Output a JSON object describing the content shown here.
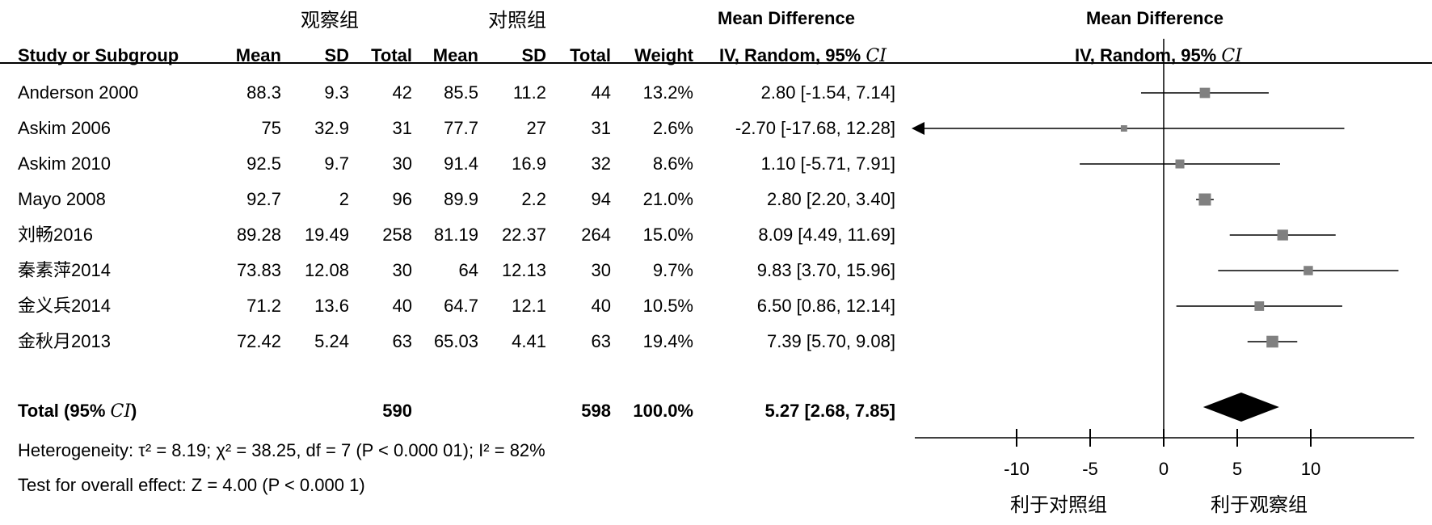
{
  "header": {
    "group1_label": "观察组",
    "group2_label": "对照组",
    "col_study": "Study or Subgroup",
    "col_mean1": "Mean",
    "col_sd1": "SD",
    "col_total1": "Total",
    "col_mean2": "Mean",
    "col_sd2": "SD",
    "col_total2": "Total",
    "col_weight": "Weight",
    "md_title": "Mean Difference",
    "md_method": "IV, Random, 95%",
    "ci_symbol": "CI",
    "plot_title": "Mean Difference",
    "plot_method": "IV, Random, 95%",
    "plot_ci_symbol": "CI"
  },
  "total": {
    "label": "Total (95%",
    "ci_symbol": "CI",
    "close": ")",
    "total1": "590",
    "total2": "598",
    "weight": "100.0%",
    "md": "5.27 [2.68, 7.85]"
  },
  "footer": {
    "heterogeneity": "Heterogeneity: τ² = 8.19; χ² = 38.25, df = 7 (P < 0.000 01); I² = 82%",
    "overall": "Test for overall effect: Z = 4.00 (P < 0.000 1)"
  },
  "colors": {
    "square": "#808080",
    "line": "#000000"
  },
  "chart_data": {
    "type": "forest",
    "xlim": [
      -17,
      17
    ],
    "ticks": [
      -10,
      -5,
      0,
      5,
      10
    ],
    "tick_labels": [
      "-10",
      "-5",
      "0",
      "5",
      "10"
    ],
    "left_label": "利于对照组",
    "right_label": "利于观察组",
    "studies": [
      {
        "name": "Anderson 2000",
        "mean1": "88.3",
        "sd1": "9.3",
        "total1": "42",
        "mean2": "85.5",
        "sd2": "11.2",
        "total2": "44",
        "weight": "13.2%",
        "md_text": "2.80 [-1.54, 7.14]",
        "md": 2.8,
        "lo": -1.54,
        "hi": 7.14,
        "w": 13.2
      },
      {
        "name": "Askim 2006",
        "mean1": "75",
        "sd1": "32.9",
        "total1": "31",
        "mean2": "77.7",
        "sd2": "27",
        "total2": "31",
        "weight": "2.6%",
        "md_text": "-2.70 [-17.68, 12.28]",
        "md": -2.7,
        "lo": -17.68,
        "hi": 12.28,
        "w": 2.6
      },
      {
        "name": "Askim 2010",
        "mean1": "92.5",
        "sd1": "9.7",
        "total1": "30",
        "mean2": "91.4",
        "sd2": "16.9",
        "total2": "32",
        "weight": "8.6%",
        "md_text": "1.10 [-5.71, 7.91]",
        "md": 1.1,
        "lo": -5.71,
        "hi": 7.91,
        "w": 8.6
      },
      {
        "name": "Mayo 2008",
        "mean1": "92.7",
        "sd1": "2",
        "total1": "96",
        "mean2": "89.9",
        "sd2": "2.2",
        "total2": "94",
        "weight": "21.0%",
        "md_text": "2.80 [2.20, 3.40]",
        "md": 2.8,
        "lo": 2.2,
        "hi": 3.4,
        "w": 21.0
      },
      {
        "name": "刘畅2016",
        "mean1": "89.28",
        "sd1": "19.49",
        "total1": "258",
        "mean2": "81.19",
        "sd2": "22.37",
        "total2": "264",
        "weight": "15.0%",
        "md_text": "8.09 [4.49, 11.69]",
        "md": 8.09,
        "lo": 4.49,
        "hi": 11.69,
        "w": 15.0
      },
      {
        "name": "秦素萍2014",
        "mean1": "73.83",
        "sd1": "12.08",
        "total1": "30",
        "mean2": "64",
        "sd2": "12.13",
        "total2": "30",
        "weight": "9.7%",
        "md_text": "9.83 [3.70, 15.96]",
        "md": 9.83,
        "lo": 3.7,
        "hi": 15.96,
        "w": 9.7
      },
      {
        "name": "金义兵2014",
        "mean1": "71.2",
        "sd1": "13.6",
        "total1": "40",
        "mean2": "64.7",
        "sd2": "12.1",
        "total2": "40",
        "weight": "10.5%",
        "md_text": "6.50 [0.86, 12.14]",
        "md": 6.5,
        "lo": 0.86,
        "hi": 12.14,
        "w": 10.5
      },
      {
        "name": "金秋月2013",
        "mean1": "72.42",
        "sd1": "5.24",
        "total1": "63",
        "mean2": "65.03",
        "sd2": "4.41",
        "total2": "63",
        "weight": "19.4%",
        "md_text": "7.39 [5.70, 9.08]",
        "md": 7.39,
        "lo": 5.7,
        "hi": 9.08,
        "w": 19.4
      }
    ],
    "pooled": {
      "md": 5.27,
      "lo": 2.68,
      "hi": 7.85
    }
  }
}
